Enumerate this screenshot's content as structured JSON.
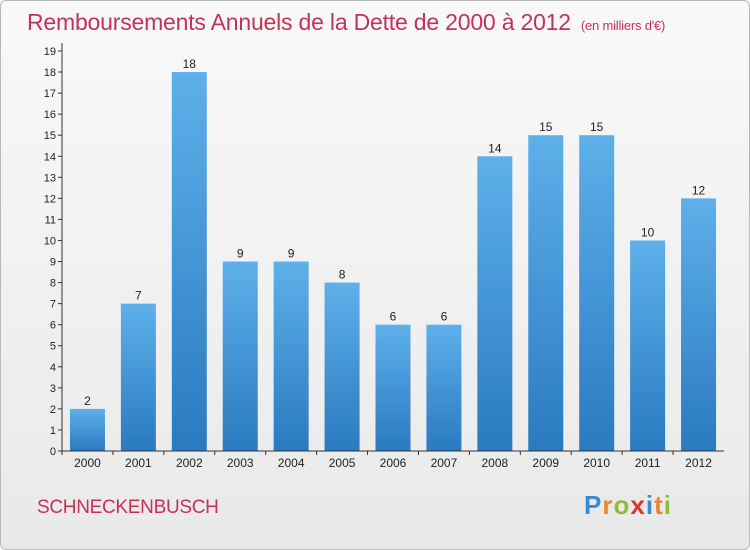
{
  "title": "Remboursements Annuels de la Dette de 2000 à 2012",
  "subtitle": "(en milliers d'€)",
  "commune": "SCHNECKENBUSCH",
  "logo": {
    "text": "Proxiti"
  },
  "colors": {
    "bar_top": "#5eb0ea",
    "bar_bottom": "#2a7ac0",
    "title": "#c4325a",
    "axis": "#333333"
  },
  "chart_data": {
    "type": "bar",
    "categories": [
      "2000",
      "2001",
      "2002",
      "2003",
      "2004",
      "2005",
      "2006",
      "2007",
      "2008",
      "2009",
      "2010",
      "2011",
      "2012"
    ],
    "values": [
      2,
      7,
      18,
      9,
      9,
      8,
      6,
      6,
      14,
      15,
      15,
      10,
      12
    ],
    "title": "Remboursements Annuels de la Dette de 2000 à 2012",
    "subtitle": "(en milliers d'€)",
    "xlabel": "",
    "ylabel": "",
    "ylim": [
      0,
      19
    ],
    "yticks": [
      0,
      1,
      2,
      3,
      4,
      5,
      6,
      7,
      8,
      9,
      10,
      11,
      12,
      13,
      14,
      15,
      16,
      17,
      18,
      19
    ],
    "grid": false,
    "data_labels": true
  }
}
